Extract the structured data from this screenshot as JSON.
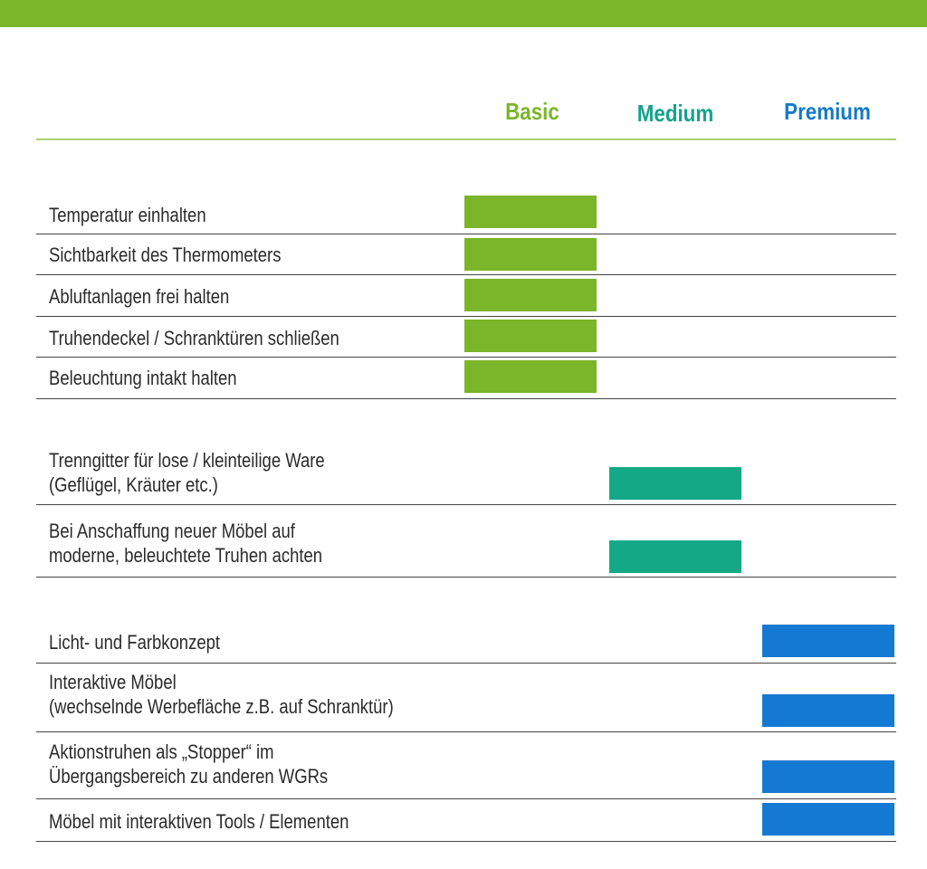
{
  "header": {
    "basic": "Basic",
    "medium": "Medium",
    "premium": "Premium"
  },
  "colors": {
    "basic": "#7ab52a",
    "medium": "#13a986",
    "premium": "#1479d2"
  },
  "basic_items": [
    "Temperatur einhalten",
    "Sichtbarkeit des Thermometers",
    "Abluftanlagen frei halten",
    "Truhendeckel / Schranktüren schließen",
    "Beleuchtung intakt halten"
  ],
  "medium_items": [
    [
      "Trenngitter für lose / kleinteilige Ware",
      "(Geflügel, Kräuter etc.)"
    ],
    [
      "Bei Anschaffung neuer Möbel auf",
      "moderne, beleuchtete Truhen achten"
    ]
  ],
  "premium_items": [
    [
      "Licht- und Farbkonzept"
    ],
    [
      "Interaktive Möbel",
      "(wechselnde Werbefläche z.B. auf Schranktür)"
    ],
    [
      "Aktionstruhen als „Stopper“ im",
      "Übergangsbereich zu anderen WGRs"
    ],
    [
      "Möbel mit interaktiven Tools / Elementen"
    ]
  ]
}
